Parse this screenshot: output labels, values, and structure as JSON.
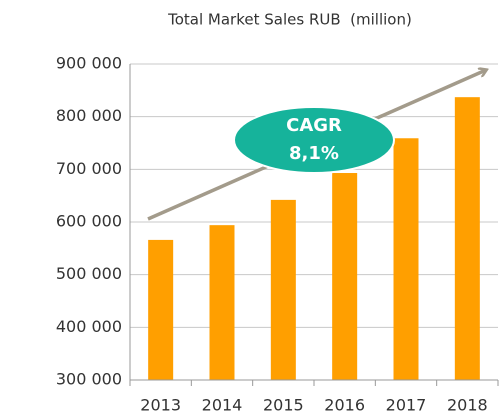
{
  "chart_data": {
    "type": "bar",
    "title": "Total Market Sales RUB  (million)",
    "categories": [
      "2013",
      "2014",
      "2015",
      "2016",
      "2017",
      "2018"
    ],
    "values": [
      566000,
      594000,
      642000,
      693000,
      759000,
      837000
    ],
    "color": "#ff9f00",
    "ylim": [
      300000,
      900000
    ],
    "yticks": [
      {
        "value": 300000,
        "label": "300 000"
      },
      {
        "value": 400000,
        "label": "400 000"
      },
      {
        "value": 500000,
        "label": "500 000"
      },
      {
        "value": 600000,
        "label": "600 000"
      },
      {
        "value": 700000,
        "label": "700 000"
      },
      {
        "value": 800000,
        "label": "800 000"
      },
      {
        "value": 900000,
        "label": "900 000"
      }
    ],
    "grid": true,
    "annotation": {
      "title": "CAGR",
      "value": "8,1%"
    }
  }
}
